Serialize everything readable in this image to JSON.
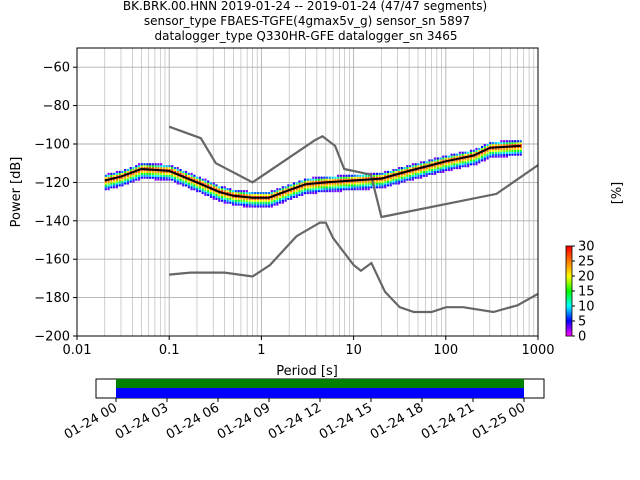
{
  "title_lines": [
    "BK.BRK.00.HNN   2019-01-24 -- 2019-01-24  (47/47 segments)",
    "sensor_type FBAES-TGFE(4gmax5v_g) sensor_sn 5897",
    "datalogger_type Q330HR-GFE datalogger_sn 3465"
  ],
  "chart_data": [
    {
      "type": "heatmap",
      "name": "ppsd",
      "xlabel": "Period [s]",
      "ylabel": "Power [dB]",
      "xscale": "log",
      "xlim": [
        0.01,
        1000
      ],
      "ylim": [
        -200,
        -50
      ],
      "xticks": [
        {
          "v": 0.01,
          "label": "0.01"
        },
        {
          "v": 0.1,
          "label": "0.1"
        },
        {
          "v": 1,
          "label": "1"
        },
        {
          "v": 10,
          "label": "10"
        },
        {
          "v": 100,
          "label": "100"
        },
        {
          "v": 1000,
          "label": "1000"
        }
      ],
      "yticks": [
        -60,
        -80,
        -100,
        -120,
        -140,
        -160,
        -180,
        -200
      ],
      "grid": true,
      "colorbar": {
        "label": "[%]",
        "range": [
          0,
          30
        ],
        "ticks": [
          0,
          5,
          10,
          15,
          20,
          25,
          30
        ]
      },
      "noise_model_high": [
        [
          0.1,
          -91
        ],
        [
          0.22,
          -97
        ],
        [
          0.32,
          -110
        ],
        [
          0.8,
          -120
        ],
        [
          3.8,
          -98
        ],
        [
          4.6,
          -96
        ],
        [
          6.3,
          -101
        ],
        [
          7.9,
          -113
        ],
        [
          15.4,
          -116
        ],
        [
          20,
          -138
        ],
        [
          354,
          -126
        ],
        [
          1000,
          -111
        ]
      ],
      "noise_model_low": [
        [
          0.1,
          -168
        ],
        [
          0.17,
          -167
        ],
        [
          0.4,
          -167
        ],
        [
          0.8,
          -169
        ],
        [
          1.24,
          -163
        ],
        [
          2.4,
          -148
        ],
        [
          4.3,
          -141
        ],
        [
          5,
          -141
        ],
        [
          6,
          -149
        ],
        [
          10,
          -163
        ],
        [
          12,
          -166
        ],
        [
          15.6,
          -162
        ],
        [
          21.9,
          -177
        ],
        [
          31.6,
          -185
        ],
        [
          45,
          -187.5
        ],
        [
          70,
          -187.5
        ],
        [
          101,
          -185
        ],
        [
          154,
          -185
        ],
        [
          328,
          -187.5
        ],
        [
          600,
          -184
        ],
        [
          1000,
          -178
        ]
      ],
      "mean_curve": [
        [
          0.02,
          -119
        ],
        [
          0.03,
          -117
        ],
        [
          0.05,
          -113
        ],
        [
          0.1,
          -114
        ],
        [
          0.2,
          -120
        ],
        [
          0.35,
          -125
        ],
        [
          0.5,
          -127
        ],
        [
          0.8,
          -128
        ],
        [
          1.2,
          -128
        ],
        [
          2,
          -124
        ],
        [
          3,
          -121
        ],
        [
          5,
          -120
        ],
        [
          10,
          -119
        ],
        [
          20,
          -118
        ],
        [
          40,
          -114
        ],
        [
          70,
          -111
        ],
        [
          100,
          -109
        ],
        [
          200,
          -106
        ],
        [
          300,
          -102
        ],
        [
          650,
          -101
        ]
      ],
      "spread_curve": [
        [
          0.03,
          -111
        ],
        [
          0.05,
          -112
        ],
        [
          0.1,
          -113
        ],
        [
          0.2,
          -118
        ],
        [
          0.4,
          -124
        ],
        [
          0.8,
          -127
        ],
        [
          2,
          -122
        ],
        [
          5,
          -118
        ],
        [
          10,
          -116
        ],
        [
          15,
          -113
        ],
        [
          20,
          -110
        ],
        [
          40,
          -104
        ],
        [
          70,
          -100
        ],
        [
          100,
          -97
        ],
        [
          200,
          -93
        ],
        [
          350,
          -89
        ],
        [
          650,
          -85
        ]
      ],
      "colors": {
        "noise_model": "#666666",
        "mean": "#000000",
        "grid": "#b0b0b0",
        "colormap": [
          "#ffffff",
          "#ff00ff",
          "#0000ff",
          "#00ffff",
          "#00ff00",
          "#ffff00",
          "#ff7f00",
          "#ff0000"
        ]
      }
    },
    {
      "type": "timeline",
      "name": "data-coverage",
      "xlim": [
        "2019-01-24 00:00",
        "2019-01-25 00:00"
      ],
      "xtick_labels": [
        "01-24 00",
        "01-24 03",
        "01-24 06",
        "01-24 09",
        "01-24 12",
        "01-24 15",
        "01-24 18",
        "01-24 21",
        "01-25 00"
      ],
      "coverage": [
        {
          "start": "2019-01-24 00:00",
          "end": "2019-01-24 24:00",
          "color": "#0000ff"
        },
        {
          "start": "2019-01-24 00:00",
          "end": "2019-01-24 24:00",
          "color": "#008000"
        }
      ]
    }
  ]
}
